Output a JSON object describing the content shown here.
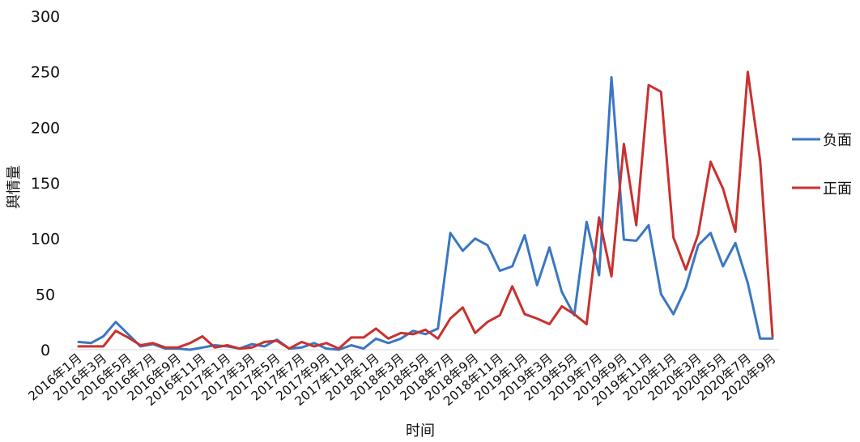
{
  "chart_data": {
    "type": "line",
    "xlabel": "时间",
    "ylabel": "舆情量",
    "ylim": [
      0,
      300
    ],
    "yticks": [
      0,
      50,
      100,
      150,
      200,
      250,
      300
    ],
    "grid": false,
    "legend_position": "right",
    "x": [
      "2016年1月",
      "2016年2月",
      "2016年3月",
      "2016年4月",
      "2016年5月",
      "2016年6月",
      "2016年7月",
      "2016年8月",
      "2016年9月",
      "2016年10月",
      "2016年11月",
      "2016年12月",
      "2017年1月",
      "2017年2月",
      "2017年3月",
      "2017年4月",
      "2017年5月",
      "2017年6月",
      "2017年7月",
      "2017年8月",
      "2017年9月",
      "2017年10月",
      "2017年11月",
      "2017年12月",
      "2018年1月",
      "2018年2月",
      "2018年3月",
      "2018年4月",
      "2018年5月",
      "2018年6月",
      "2018年7月",
      "2018年8月",
      "2018年9月",
      "2018年10月",
      "2018年11月",
      "2018年12月",
      "2019年1月",
      "2019年2月",
      "2019年3月",
      "2019年4月",
      "2019年5月",
      "2019年6月",
      "2019年7月",
      "2019年8月",
      "2019年9月",
      "2019年10月",
      "2019年11月",
      "2019年12月",
      "2020年1月",
      "2020年2月",
      "2020年3月",
      "2020年4月",
      "2020年5月",
      "2020年6月",
      "2020年7月",
      "2020年8月",
      "2020年9月"
    ],
    "x_tick_labels": [
      "2016年1月",
      "2016年3月",
      "2016年5月",
      "2016年7月",
      "2016年9月",
      "2016年11月",
      "2017年1月",
      "2017年3月",
      "2017年5月",
      "2017年7月",
      "2017年9月",
      "2017年11月",
      "2018年1月",
      "2018年3月",
      "2018年5月",
      "2018年7月",
      "2018年9月",
      "2018年11月",
      "2019年1月",
      "2019年3月",
      "2019年5月",
      "2019年7月",
      "2019年9月",
      "2019年11月",
      "2020年1月",
      "2020年3月",
      "2020年5月",
      "2020年7月",
      "2020年9月"
    ],
    "series": [
      {
        "name": "负面",
        "color": "#3A77C2",
        "values": [
          7,
          6,
          12,
          25,
          14,
          3,
          5,
          1,
          1,
          0,
          2,
          4,
          3,
          1,
          5,
          3,
          9,
          1,
          2,
          6,
          1,
          0,
          4,
          1,
          10,
          6,
          10,
          17,
          14,
          19,
          105,
          89,
          100,
          94,
          71,
          75,
          103,
          58,
          92,
          52,
          31,
          115,
          67,
          245,
          99,
          98,
          112,
          50,
          32,
          56,
          94,
          105,
          75,
          96,
          60,
          10,
          10
        ]
      },
      {
        "name": "正面",
        "color": "#C9312F",
        "values": [
          3,
          3,
          3,
          17,
          11,
          4,
          6,
          2,
          2,
          6,
          12,
          2,
          4,
          1,
          2,
          7,
          8,
          1,
          7,
          3,
          6,
          1,
          11,
          11,
          19,
          10,
          15,
          14,
          18,
          10,
          28,
          38,
          15,
          25,
          31,
          57,
          32,
          28,
          23,
          39,
          32,
          23,
          119,
          66,
          185,
          112,
          238,
          232,
          101,
          72,
          104,
          169,
          145,
          106,
          250,
          170,
          12
        ]
      }
    ]
  }
}
